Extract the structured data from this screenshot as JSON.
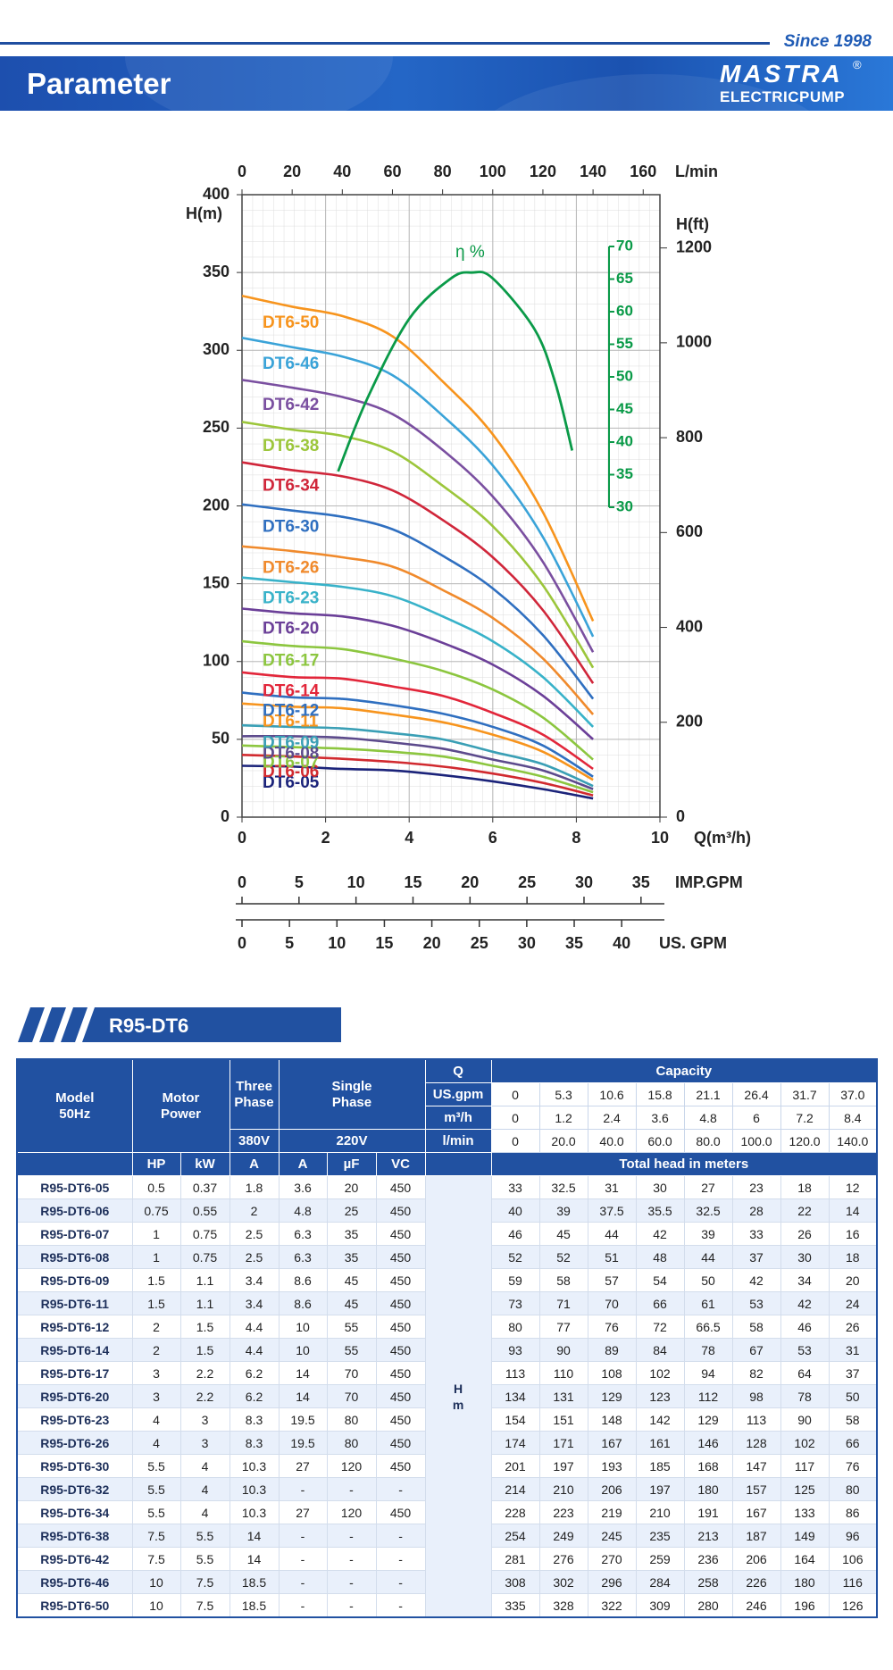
{
  "header": {
    "since": "Since 1998",
    "title": "Parameter",
    "brand": "MASTRA",
    "brand_mark": "®",
    "brand_sub": "ELECTRICPUMP"
  },
  "chart_data": {
    "type": "line",
    "x": [
      0,
      1.2,
      2.4,
      3.6,
      4.8,
      6,
      7.2,
      8.4
    ],
    "xlim": [
      0,
      10
    ],
    "xticks": [
      0,
      2,
      4,
      6,
      8,
      10
    ],
    "xlabel": "Q(m³/h)",
    "ylim": [
      0,
      400
    ],
    "yticks": [
      0,
      50,
      100,
      150,
      200,
      250,
      300,
      350,
      400
    ],
    "ylabel": "H(m)",
    "y2lim": [
      0,
      1312.3
    ],
    "y2ticks": [
      0,
      200,
      400,
      600,
      800,
      1000,
      1200
    ],
    "y2label": "H(ft)",
    "top_axis": {
      "label": "L/min",
      "lim": [
        0,
        166.67
      ],
      "ticks": [
        0,
        20,
        40,
        60,
        80,
        100,
        120,
        140,
        160
      ]
    },
    "imp_axis": {
      "label": "IMP.GPM",
      "lim": [
        0,
        36.66
      ],
      "ticks": [
        0,
        5,
        10,
        15,
        20,
        25,
        30,
        35
      ]
    },
    "us_axis": {
      "label": "US. GPM",
      "lim": [
        0,
        44.03
      ],
      "ticks": [
        0,
        5,
        10,
        15,
        20,
        25,
        30,
        35,
        40
      ]
    },
    "grid": true,
    "series": [
      {
        "name": "DT6-05",
        "color": "#1b237a",
        "values": [
          33,
          32.5,
          31,
          30,
          27,
          23,
          18,
          12
        ]
      },
      {
        "name": "DT6-06",
        "color": "#d12a2f",
        "values": [
          40,
          39,
          37.5,
          35.5,
          32.5,
          28,
          22,
          14
        ]
      },
      {
        "name": "DT6-07",
        "color": "#8cc63f",
        "values": [
          46,
          45,
          44,
          42,
          39,
          33,
          26,
          16
        ]
      },
      {
        "name": "DT6-08",
        "color": "#5c4a8c",
        "values": [
          52,
          52,
          51,
          48,
          44,
          37,
          30,
          18
        ]
      },
      {
        "name": "DT6-09",
        "color": "#3a9fb5",
        "values": [
          59,
          58,
          57,
          54,
          50,
          42,
          34,
          20
        ]
      },
      {
        "name": "DT6-11",
        "color": "#f7941d",
        "values": [
          73,
          71,
          70,
          66,
          61,
          53,
          42,
          24
        ]
      },
      {
        "name": "DT6-12",
        "color": "#2f6fc0",
        "values": [
          80,
          77,
          76,
          72,
          66.5,
          58,
          46,
          26
        ]
      },
      {
        "name": "DT6-14",
        "color": "#e2263a",
        "values": [
          93,
          90,
          89,
          84,
          78,
          67,
          53,
          31
        ]
      },
      {
        "name": "DT6-17",
        "color": "#8cc63f",
        "values": [
          113,
          110,
          108,
          102,
          94,
          82,
          64,
          37
        ]
      },
      {
        "name": "DT6-20",
        "color": "#6b3f98",
        "values": [
          134,
          131,
          129,
          123,
          112,
          98,
          78,
          50
        ]
      },
      {
        "name": "DT6-23",
        "color": "#38b2c9",
        "values": [
          154,
          151,
          148,
          142,
          129,
          113,
          90,
          58
        ]
      },
      {
        "name": "DT6-26",
        "color": "#f08a2c",
        "values": [
          174,
          171,
          167,
          161,
          146,
          128,
          102,
          66
        ]
      },
      {
        "name": "DT6-30",
        "color": "#2f6fc0",
        "values": [
          201,
          197,
          193,
          185,
          168,
          147,
          117,
          76
        ]
      },
      {
        "name": "DT6-34",
        "color": "#d0263a",
        "values": [
          228,
          223,
          219,
          210,
          191,
          167,
          133,
          86
        ]
      },
      {
        "name": "DT6-38",
        "color": "#9cc63b",
        "values": [
          254,
          249,
          245,
          235,
          213,
          187,
          149,
          96
        ]
      },
      {
        "name": "DT6-42",
        "color": "#7a4fa0",
        "values": [
          281,
          276,
          270,
          259,
          236,
          206,
          164,
          106
        ]
      },
      {
        "name": "DT6-46",
        "color": "#3aa3d8",
        "values": [
          308,
          302,
          296,
          284,
          258,
          226,
          180,
          116
        ]
      },
      {
        "name": "DT6-50",
        "color": "#f7941d",
        "values": [
          335,
          328,
          322,
          309,
          280,
          246,
          196,
          126
        ]
      }
    ],
    "efficiency": {
      "label": "η %",
      "color": "#0a9a48",
      "lim": [
        30,
        70
      ],
      "ticks": [
        30,
        35,
        40,
        45,
        50,
        55,
        60,
        65,
        70
      ],
      "x": [
        2.3,
        3,
        4,
        5,
        5.5,
        6,
        7,
        7.5,
        7.9
      ],
      "values": [
        35.5,
        46.7,
        58.9,
        65.1,
        66,
        65.1,
        57.3,
        49,
        38.7
      ]
    }
  },
  "table": {
    "title": "R95-DT6",
    "header": {
      "model": [
        "Model",
        "50Hz"
      ],
      "motor": [
        "Motor",
        "Power"
      ],
      "three": [
        "Three",
        "Phase"
      ],
      "single": [
        "Single",
        "Phase"
      ],
      "q": "Q",
      "capacity": "Capacity",
      "us_gpm": "US.gpm",
      "m3h": "m³/h",
      "lmin": "l/min",
      "v380": "380V",
      "v220": "220V",
      "units": [
        "HP",
        "kW",
        "A",
        "A",
        "µF",
        "VC"
      ],
      "total": "Total head in meters",
      "h": [
        "H",
        "m"
      ]
    },
    "capacity": {
      "us_gpm": [
        "0",
        "5.3",
        "10.6",
        "15.8",
        "21.1",
        "26.4",
        "31.7",
        "37.0"
      ],
      "m3h": [
        "0",
        "1.2",
        "2.4",
        "3.6",
        "4.8",
        "6",
        "7.2",
        "8.4"
      ],
      "lmin": [
        "0",
        "20.0",
        "40.0",
        "60.0",
        "80.0",
        "100.0",
        "120.0",
        "140.0"
      ]
    },
    "rows": [
      [
        "R95-DT6-05",
        "0.5",
        "0.37",
        "1.8",
        "3.6",
        "20",
        "450",
        "33",
        "32.5",
        "31",
        "30",
        "27",
        "23",
        "18",
        "12"
      ],
      [
        "R95-DT6-06",
        "0.75",
        "0.55",
        "2",
        "4.8",
        "25",
        "450",
        "40",
        "39",
        "37.5",
        "35.5",
        "32.5",
        "28",
        "22",
        "14"
      ],
      [
        "R95-DT6-07",
        "1",
        "0.75",
        "2.5",
        "6.3",
        "35",
        "450",
        "46",
        "45",
        "44",
        "42",
        "39",
        "33",
        "26",
        "16"
      ],
      [
        "R95-DT6-08",
        "1",
        "0.75",
        "2.5",
        "6.3",
        "35",
        "450",
        "52",
        "52",
        "51",
        "48",
        "44",
        "37",
        "30",
        "18"
      ],
      [
        "R95-DT6-09",
        "1.5",
        "1.1",
        "3.4",
        "8.6",
        "45",
        "450",
        "59",
        "58",
        "57",
        "54",
        "50",
        "42",
        "34",
        "20"
      ],
      [
        "R95-DT6-11",
        "1.5",
        "1.1",
        "3.4",
        "8.6",
        "45",
        "450",
        "73",
        "71",
        "70",
        "66",
        "61",
        "53",
        "42",
        "24"
      ],
      [
        "R95-DT6-12",
        "2",
        "1.5",
        "4.4",
        "10",
        "55",
        "450",
        "80",
        "77",
        "76",
        "72",
        "66.5",
        "58",
        "46",
        "26"
      ],
      [
        "R95-DT6-14",
        "2",
        "1.5",
        "4.4",
        "10",
        "55",
        "450",
        "93",
        "90",
        "89",
        "84",
        "78",
        "67",
        "53",
        "31"
      ],
      [
        "R95-DT6-17",
        "3",
        "2.2",
        "6.2",
        "14",
        "70",
        "450",
        "113",
        "110",
        "108",
        "102",
        "94",
        "82",
        "64",
        "37"
      ],
      [
        "R95-DT6-20",
        "3",
        "2.2",
        "6.2",
        "14",
        "70",
        "450",
        "134",
        "131",
        "129",
        "123",
        "112",
        "98",
        "78",
        "50"
      ],
      [
        "R95-DT6-23",
        "4",
        "3",
        "8.3",
        "19.5",
        "80",
        "450",
        "154",
        "151",
        "148",
        "142",
        "129",
        "113",
        "90",
        "58"
      ],
      [
        "R95-DT6-26",
        "4",
        "3",
        "8.3",
        "19.5",
        "80",
        "450",
        "174",
        "171",
        "167",
        "161",
        "146",
        "128",
        "102",
        "66"
      ],
      [
        "R95-DT6-30",
        "5.5",
        "4",
        "10.3",
        "27",
        "120",
        "450",
        "201",
        "197",
        "193",
        "185",
        "168",
        "147",
        "117",
        "76"
      ],
      [
        "R95-DT6-32",
        "5.5",
        "4",
        "10.3",
        "-",
        "-",
        "-",
        "214",
        "210",
        "206",
        "197",
        "180",
        "157",
        "125",
        "80"
      ],
      [
        "R95-DT6-34",
        "5.5",
        "4",
        "10.3",
        "27",
        "120",
        "450",
        "228",
        "223",
        "219",
        "210",
        "191",
        "167",
        "133",
        "86"
      ],
      [
        "R95-DT6-38",
        "7.5",
        "5.5",
        "14",
        "-",
        "-",
        "-",
        "254",
        "249",
        "245",
        "235",
        "213",
        "187",
        "149",
        "96"
      ],
      [
        "R95-DT6-42",
        "7.5",
        "5.5",
        "14",
        "-",
        "-",
        "-",
        "281",
        "276",
        "270",
        "259",
        "236",
        "206",
        "164",
        "106"
      ],
      [
        "R95-DT6-46",
        "10",
        "7.5",
        "18.5",
        "-",
        "-",
        "-",
        "308",
        "302",
        "296",
        "284",
        "258",
        "226",
        "180",
        "116"
      ],
      [
        "R95-DT6-50",
        "10",
        "7.5",
        "18.5",
        "-",
        "-",
        "-",
        "335",
        "328",
        "322",
        "309",
        "280",
        "246",
        "196",
        "126"
      ]
    ]
  }
}
